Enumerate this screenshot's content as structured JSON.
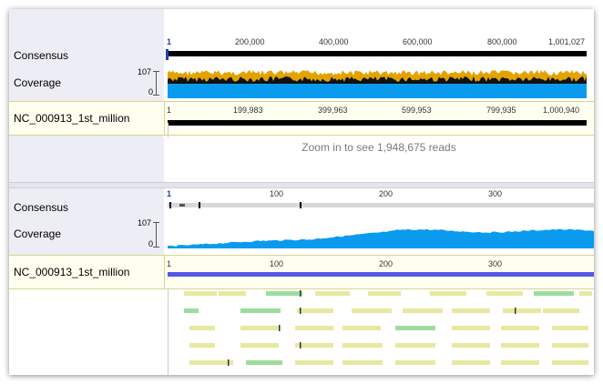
{
  "top_panel": {
    "consensus_label": "Consensus",
    "coverage_label": "Coverage",
    "coverage_max": "107",
    "coverage_min": "0",
    "ruler_start": "1",
    "ruler_ticks": [
      "200,000",
      "400,000",
      "600,000",
      "800,000",
      "1,001,027"
    ],
    "reference_name": "NC_000913_1st_million",
    "reference_ticks_start": "1",
    "reference_ticks": [
      "199,983",
      "399,963",
      "599,953",
      "799,935",
      "1,000,940"
    ],
    "zoom_message": "Zoom in to see 1,948,675 reads"
  },
  "bottom_panel": {
    "consensus_label": "Consensus",
    "coverage_label": "Coverage",
    "coverage_max": "107",
    "coverage_min": "0",
    "ruler_start": "1",
    "ruler_ticks": [
      "100",
      "200",
      "300"
    ],
    "reference_name": "NC_000913_1st_million",
    "reference_ticks_start": "1",
    "reference_ticks": [
      "100",
      "200",
      "300"
    ]
  },
  "colors": {
    "coverage_blue": "#0a9bef",
    "coverage_orange": "#e3a200",
    "reference_blue": "#5558e8",
    "read_yellow": "#e8e8a0",
    "read_green": "#9edc9e",
    "label_bg": "#ededf5"
  }
}
